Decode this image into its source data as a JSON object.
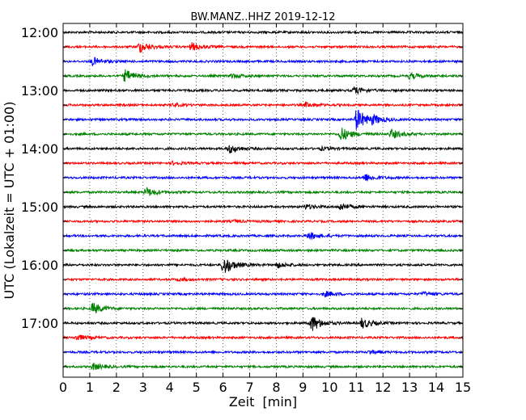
{
  "chart_data": {
    "type": "line",
    "title": "BW.MANZ..HHZ 2019-12-12",
    "xlabel": "Zeit  [min]",
    "ylabel": "UTC (Lokalzeit = UTC + 01:00)",
    "xlim": [
      0,
      15
    ],
    "x_ticks": [
      "0",
      "1",
      "2",
      "3",
      "4",
      "5",
      "6",
      "7",
      "8",
      "9",
      "10",
      "11",
      "12",
      "13",
      "14",
      "15"
    ],
    "y_tick_labels": [
      "12:00",
      "13:00",
      "14:00",
      "15:00",
      "16:00",
      "17:00"
    ],
    "traces_per_hour": 4,
    "trace_minutes": 15,
    "grid": "vertical dotted",
    "colors": [
      "#000000",
      "#ff0000",
      "#0000ff",
      "#008000"
    ],
    "traces": [
      {
        "start": "12:00",
        "events": []
      },
      {
        "start": "12:15",
        "events": [
          {
            "t": 2.85,
            "amp": 0.5
          },
          {
            "t": 4.8,
            "amp": 0.35
          }
        ]
      },
      {
        "start": "12:30",
        "events": [
          {
            "t": 1.1,
            "amp": 0.35
          }
        ]
      },
      {
        "start": "12:45",
        "events": [
          {
            "t": 2.3,
            "amp": 0.55
          },
          {
            "t": 6.3,
            "amp": 0.2
          },
          {
            "t": 13.0,
            "amp": 0.25
          }
        ]
      },
      {
        "start": "13:00",
        "events": [
          {
            "t": 10.9,
            "amp": 0.3
          }
        ]
      },
      {
        "start": "13:15",
        "events": [
          {
            "t": 4.1,
            "amp": 0.12
          },
          {
            "t": 9.1,
            "amp": 0.2
          }
        ]
      },
      {
        "start": "13:30",
        "events": [
          {
            "t": 11.0,
            "amp": 1.0
          },
          {
            "t": 11.6,
            "amp": 0.3
          }
        ]
      },
      {
        "start": "13:45",
        "events": [
          {
            "t": 10.4,
            "amp": 0.65
          },
          {
            "t": 12.3,
            "amp": 0.4
          }
        ]
      },
      {
        "start": "14:00",
        "events": [
          {
            "t": 6.2,
            "amp": 0.4
          },
          {
            "t": 9.7,
            "amp": 0.12
          }
        ]
      },
      {
        "start": "14:15",
        "events": [
          {
            "t": 4.1,
            "amp": 0.12
          }
        ]
      },
      {
        "start": "14:30",
        "events": [
          {
            "t": 11.3,
            "amp": 0.35
          }
        ]
      },
      {
        "start": "14:45",
        "events": [
          {
            "t": 3.1,
            "amp": 0.4
          }
        ]
      },
      {
        "start": "15:00",
        "events": [
          {
            "t": 9.1,
            "amp": 0.2
          },
          {
            "t": 10.4,
            "amp": 0.3
          }
        ]
      },
      {
        "start": "15:15",
        "events": [
          {
            "t": 6.4,
            "amp": 0.1
          }
        ]
      },
      {
        "start": "15:30",
        "events": [
          {
            "t": 9.2,
            "amp": 0.35
          }
        ]
      },
      {
        "start": "15:45",
        "events": []
      },
      {
        "start": "16:00",
        "events": [
          {
            "t": 6.0,
            "amp": 0.9
          },
          {
            "t": 8.0,
            "amp": 0.25
          }
        ]
      },
      {
        "start": "16:15",
        "events": [
          {
            "t": 4.3,
            "amp": 0.12
          }
        ]
      },
      {
        "start": "16:30",
        "events": [
          {
            "t": 9.8,
            "amp": 0.25
          },
          {
            "t": 13.5,
            "amp": 0.15
          }
        ]
      },
      {
        "start": "16:45",
        "events": [
          {
            "t": 1.1,
            "amp": 0.5
          }
        ]
      },
      {
        "start": "17:00",
        "events": [
          {
            "t": 9.3,
            "amp": 0.75
          },
          {
            "t": 11.2,
            "amp": 0.45
          }
        ]
      },
      {
        "start": "17:15",
        "events": [
          {
            "t": 0.5,
            "amp": 0.25
          }
        ]
      },
      {
        "start": "17:30",
        "events": [
          {
            "t": 11.5,
            "amp": 0.15
          }
        ]
      },
      {
        "start": "17:45",
        "events": [
          {
            "t": 1.1,
            "amp": 0.3
          }
        ]
      }
    ]
  }
}
